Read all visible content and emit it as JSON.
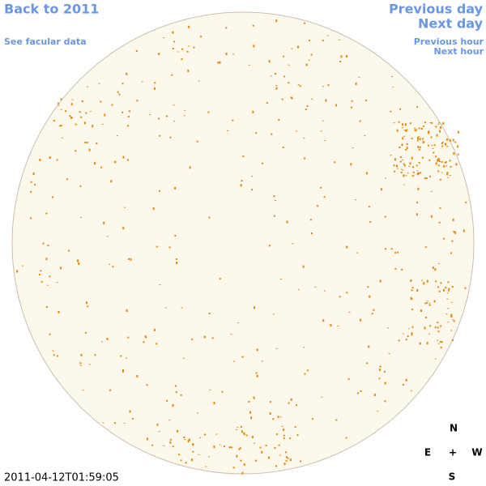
{
  "header": {
    "back_link": "Back to 2011",
    "facular_link": "See facular data",
    "previous_day": "Previous day",
    "next_day": "Next day",
    "previous_hour": "Previous hour",
    "next_hour": "Next hour"
  },
  "footer": {
    "timestamp": "2011-04-12T01:59:05"
  },
  "compass": {
    "north": "N",
    "east": "E",
    "center": "+",
    "west": "W",
    "south": "S"
  }
}
